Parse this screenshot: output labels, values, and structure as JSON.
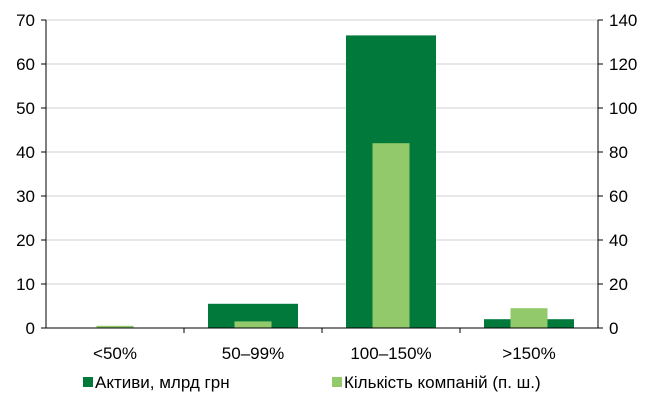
{
  "chart_data": {
    "type": "bar",
    "categories": [
      "<50%",
      "50–99%",
      "100–150%",
      ">150%"
    ],
    "series": [
      {
        "name": "Активи, млрд грн",
        "axis": "left",
        "color": "#00793a",
        "values": [
          0.1,
          5.5,
          66.5,
          2.0
        ]
      },
      {
        "name": "Кількість компаній (п. ш.)",
        "axis": "right",
        "color": "#92c96b",
        "values": [
          1,
          3,
          84,
          9
        ]
      }
    ],
    "y_left": {
      "min": 0,
      "max": 70,
      "step": 10,
      "ticks": [
        "0",
        "10",
        "20",
        "30",
        "40",
        "50",
        "60",
        "70"
      ]
    },
    "y_right": {
      "min": 0,
      "max": 140,
      "step": 20,
      "ticks": [
        "0",
        "20",
        "40",
        "60",
        "80",
        "100",
        "120",
        "140"
      ]
    },
    "grid": true,
    "legend_position": "bottom"
  }
}
